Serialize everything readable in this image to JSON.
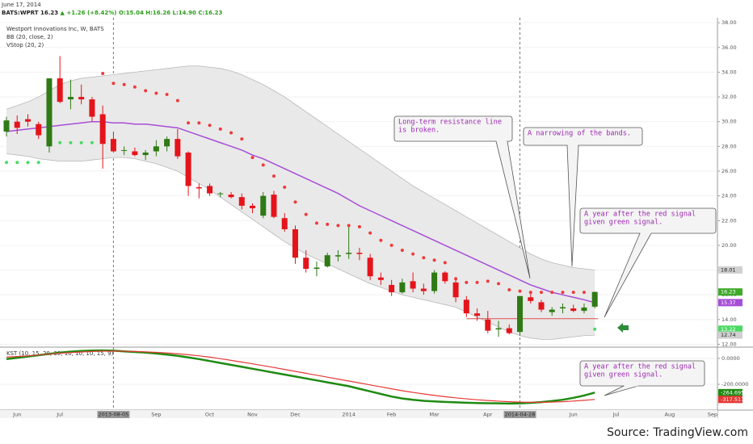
{
  "chart_data": {
    "type": "candlestick",
    "header": {
      "date": "June 17, 2014",
      "quote": "BATS:WPRT 16.23",
      "change": "▲ +1.26 (+8.42%)",
      "ohlc": "O:15.04 H:16.26 L:14.90 C:16.23"
    },
    "title": "Westport Innovations Inc, W, BATS",
    "source": "Source: TradingView.com",
    "categories": [
      null,
      "Jun",
      null,
      null,
      null,
      "Jul",
      null,
      null,
      null,
      null,
      "2013-08-05",
      null,
      null,
      null,
      "Sep",
      null,
      null,
      null,
      null,
      "Oct",
      null,
      null,
      null,
      "Nov",
      null,
      null,
      null,
      "Dec",
      null,
      null,
      null,
      null,
      "2014",
      null,
      null,
      null,
      "Feb",
      null,
      null,
      null,
      "Mar",
      null,
      null,
      null,
      null,
      "Apr",
      null,
      null,
      "2014-04-28",
      null,
      null,
      null,
      null,
      "Jun",
      null,
      null,
      null,
      "Jul",
      null,
      null,
      null,
      null,
      "Aug",
      null,
      null,
      null,
      "Sep"
    ],
    "highlighted_categories": [
      10,
      48
    ],
    "open": [
      29.2,
      30.0,
      30.2,
      29.8,
      28.0,
      33.5,
      31.8,
      32.0,
      31.8,
      30.6,
      28.6,
      27.7,
      27.6,
      27.3,
      27.6,
      28.0,
      28.6,
      27.5,
      24.7,
      24.8,
      24.2,
      24.1,
      23.9,
      23.2,
      22.4,
      24.1,
      22.2,
      21.3,
      19.0,
      18.1,
      18.3,
      19.1,
      19.3,
      19.4,
      19.0,
      17.4,
      16.8,
      16.2,
      17.1,
      16.5,
      16.3,
      17.8,
      17.0,
      15.6,
      14.5,
      14.0,
      13.2,
      13.3,
      13.0,
      15.8,
      15.4,
      14.6,
      14.9,
      14.9,
      14.7,
      15.04,
      null,
      null,
      null,
      null,
      null,
      null,
      null,
      null,
      null,
      null,
      null
    ],
    "high": [
      30.4,
      30.5,
      30.6,
      30.0,
      33.5,
      35.3,
      33.4,
      33.0,
      32.0,
      31.3,
      29.2,
      28.0,
      27.9,
      27.7,
      28.5,
      28.8,
      29.4,
      27.6,
      25.0,
      25.0,
      24.3,
      24.3,
      24.2,
      23.4,
      24.3,
      24.4,
      22.6,
      21.6,
      19.6,
      18.7,
      19.4,
      19.6,
      21.5,
      19.8,
      19.3,
      17.8,
      17.2,
      17.3,
      17.8,
      16.9,
      18.0,
      17.9,
      17.2,
      15.9,
      14.9,
      14.7,
      13.9,
      13.6,
      15.9,
      16.2,
      15.6,
      15.0,
      15.3,
      15.2,
      15.3,
      16.26,
      null,
      null,
      null,
      null,
      null,
      null,
      null,
      null,
      null,
      null,
      null
    ],
    "low": [
      28.8,
      29.0,
      29.6,
      28.6,
      27.5,
      31.5,
      31.0,
      31.4,
      30.0,
      26.2,
      27.5,
      27.3,
      27.2,
      26.9,
      27.2,
      27.6,
      27.0,
      24.0,
      23.8,
      24.0,
      23.9,
      23.8,
      22.9,
      22.6,
      22.2,
      22.2,
      21.1,
      18.5,
      17.8,
      17.5,
      18.2,
      18.7,
      18.9,
      18.8,
      17.2,
      16.8,
      15.9,
      16.1,
      16.2,
      16.0,
      16.1,
      16.9,
      15.4,
      14.2,
      13.9,
      12.9,
      12.6,
      12.8,
      12.7,
      15.3,
      14.6,
      14.3,
      14.5,
      14.6,
      14.5,
      14.9,
      null,
      null,
      null,
      null,
      null,
      null,
      null,
      null,
      null,
      null,
      null
    ],
    "close": [
      30.1,
      29.5,
      30.0,
      28.9,
      33.5,
      31.6,
      32.0,
      31.8,
      30.4,
      28.2,
      27.6,
      27.7,
      27.3,
      27.5,
      28.0,
      28.6,
      27.2,
      24.8,
      24.6,
      24.2,
      24.2,
      23.9,
      23.2,
      23.0,
      24.0,
      22.3,
      21.3,
      19.0,
      18.1,
      18.2,
      19.2,
      19.2,
      19.4,
      19.3,
      17.5,
      17.2,
      16.2,
      17.0,
      16.5,
      16.3,
      17.8,
      17.1,
      15.8,
      14.5,
      14.3,
      13.1,
      13.3,
      12.9,
      15.9,
      15.5,
      14.8,
      14.8,
      15.0,
      14.7,
      14.97,
      16.23,
      null,
      null,
      null,
      null,
      null,
      null,
      null,
      null,
      null,
      null,
      null
    ],
    "close_label": "16.23",
    "up_color": "#2f7a14",
    "down_color": "#e5141b",
    "tag_color": "#3faa2a",
    "ylim": [
      11.9,
      38.4
    ],
    "yticks": [
      {
        "value": 12,
        "label": "12.00"
      },
      {
        "value": 14,
        "label": "14.00"
      },
      {
        "value": 16,
        "label": "16.00"
      },
      {
        "value": 18,
        "label": "18.00"
      },
      {
        "value": 20,
        "label": "20.00"
      },
      {
        "value": 22,
        "label": "22.00"
      },
      {
        "value": 24,
        "label": "24.00"
      },
      {
        "value": 26,
        "label": "26.00"
      },
      {
        "value": 28,
        "label": "28.00"
      },
      {
        "value": 30,
        "label": "30.00"
      },
      {
        "value": 32,
        "label": "32.00"
      },
      {
        "value": 34,
        "label": "34.00"
      },
      {
        "value": 36,
        "label": "36.00"
      },
      {
        "value": 38,
        "label": "38.00"
      }
    ],
    "grid": true,
    "bb": {
      "name": "BB (20, close, 2)",
      "color": "#a64ed6",
      "band_color": "#b8b8b8",
      "fill": "#e9e9e9",
      "basis": [
        29.2,
        29.3,
        29.4,
        29.5,
        29.6,
        29.7,
        29.8,
        29.9,
        30.0,
        30.0,
        29.9,
        29.9,
        29.8,
        29.8,
        29.7,
        29.6,
        29.5,
        29.2,
        28.9,
        28.6,
        28.3,
        28.0,
        27.7,
        27.3,
        27.0,
        26.6,
        26.2,
        25.8,
        25.4,
        25.0,
        24.6,
        24.2,
        23.7,
        23.2,
        22.8,
        22.4,
        22.0,
        21.6,
        21.2,
        20.8,
        20.4,
        20.0,
        19.6,
        19.2,
        18.8,
        18.4,
        18.0,
        17.6,
        17.2,
        16.8,
        16.5,
        16.2,
        16.0,
        15.8,
        15.6,
        15.37,
        null,
        null,
        null,
        null,
        null,
        null,
        null,
        null,
        null,
        null,
        null
      ],
      "basis_label": "15.37",
      "upper": [
        31.0,
        31.3,
        31.6,
        32.0,
        32.5,
        33.0,
        33.3,
        33.5,
        33.6,
        33.7,
        33.8,
        33.9,
        34.0,
        34.1,
        34.2,
        34.3,
        34.4,
        34.5,
        34.5,
        34.4,
        34.3,
        34.1,
        33.8,
        33.4,
        33.0,
        32.5,
        32.0,
        31.4,
        30.8,
        30.2,
        29.6,
        29.0,
        28.4,
        27.8,
        27.2,
        26.6,
        26.0,
        25.4,
        24.8,
        24.3,
        23.8,
        23.3,
        22.8,
        22.3,
        21.8,
        21.3,
        20.8,
        20.3,
        19.8,
        19.3,
        18.9,
        18.6,
        18.4,
        18.2,
        18.1,
        18.01,
        null,
        null,
        null,
        null,
        null,
        null,
        null,
        null,
        null,
        null,
        null
      ],
      "upper_label": "18.01",
      "lower": [
        27.4,
        27.3,
        27.2,
        27.0,
        26.9,
        26.8,
        26.8,
        26.8,
        26.9,
        27.0,
        27.1,
        27.1,
        27.0,
        26.8,
        26.6,
        26.3,
        26.0,
        25.5,
        25.0,
        24.5,
        23.9,
        23.3,
        22.7,
        22.1,
        21.5,
        20.9,
        20.3,
        19.8,
        19.3,
        18.9,
        18.5,
        18.1,
        17.7,
        17.3,
        16.9,
        16.6,
        16.3,
        16.0,
        15.8,
        15.6,
        15.4,
        15.2,
        15.0,
        14.6,
        14.2,
        13.8,
        13.4,
        13.0,
        12.7,
        12.5,
        12.4,
        12.4,
        12.5,
        12.6,
        12.7,
        12.74,
        null,
        null,
        null,
        null,
        null,
        null,
        null,
        null,
        null,
        null,
        null
      ],
      "lower_label": "12.74"
    },
    "vstop": {
      "name": "VStop (20, 2)",
      "up_color": "#4cd964",
      "down_color": "#ef3b3b",
      "up": [
        26.7,
        26.7,
        26.7,
        26.7,
        null,
        28.3,
        28.3,
        28.3,
        28.3,
        null,
        null,
        null,
        null,
        null,
        null,
        null,
        null,
        null,
        null,
        null,
        null,
        null,
        null,
        null,
        null,
        null,
        null,
        null,
        null,
        null,
        null,
        null,
        null,
        null,
        null,
        null,
        null,
        null,
        null,
        null,
        null,
        null,
        null,
        null,
        null,
        null,
        null,
        null,
        null,
        null,
        null,
        null,
        null,
        null,
        null,
        13.22,
        null,
        null,
        null,
        null,
        null,
        null,
        null,
        null,
        null,
        null,
        null
      ],
      "up_label": "13.22",
      "down": [
        null,
        null,
        null,
        null,
        null,
        null,
        null,
        null,
        null,
        33.9,
        33.1,
        33.0,
        32.8,
        32.5,
        32.3,
        32.2,
        31.7,
        29.9,
        29.9,
        29.7,
        29.4,
        29.1,
        28.6,
        27.1,
        26.5,
        25.6,
        24.7,
        23.5,
        22.5,
        21.8,
        21.7,
        21.6,
        21.6,
        21.5,
        21.0,
        20.4,
        20.0,
        19.6,
        19.3,
        19.0,
        18.8,
        18.6,
        17.3,
        17.0,
        17.0,
        17.1,
        16.9,
        16.4,
        16.3,
        16.2,
        16.2,
        16.2,
        16.2,
        16.2,
        16.2,
        null,
        null,
        null,
        null,
        null,
        null,
        null,
        null,
        null,
        null,
        null,
        null
      ]
    },
    "support_level": 14.07,
    "annotations": [
      {
        "lines": [
          "Long-term resistance line",
          "is broken."
        ]
      },
      {
        "lines": [
          "A narrowing of the bands."
        ]
      },
      {
        "lines": [
          "A year after the red signal",
          "given green signal."
        ]
      },
      {
        "lines": [
          "A year after the red signal",
          "given green signal."
        ]
      }
    ],
    "kst": {
      "name": "KST (10, 15, 20, 30, 10, 10, 10, 15, 9)",
      "ylim": [
        -400,
        75
      ],
      "yticks": [
        {
          "value": 0,
          "label": "0.0000"
        },
        {
          "value": -200,
          "label": "-200.0000"
        }
      ],
      "series": [
        {
          "color": "#1f8a12",
          "last_label": "-264.6956",
          "values": [
            -5,
            5,
            15,
            25,
            35,
            45,
            52,
            58,
            61,
            62,
            60,
            55,
            50,
            45,
            38,
            30,
            20,
            8,
            -5,
            -20,
            -35,
            -50,
            -65,
            -80,
            -95,
            -110,
            -125,
            -140,
            -155,
            -170,
            -185,
            -200,
            -215,
            -235,
            -255,
            -275,
            -295,
            -310,
            -320,
            -328,
            -333,
            -337,
            -340,
            -343,
            -345,
            -347,
            -348,
            -349,
            -348,
            -344,
            -338,
            -330,
            -320,
            -305,
            -287,
            -264.6956,
            null,
            null,
            null,
            null,
            null,
            null,
            null,
            null,
            null,
            null,
            null
          ]
        },
        {
          "color": "#e53935",
          "last_label": "-317.5176",
          "values": [
            10,
            15,
            20,
            27,
            34,
            40,
            45,
            50,
            54,
            56,
            57,
            56,
            54,
            51,
            47,
            42,
            36,
            29,
            20,
            10,
            -2,
            -15,
            -28,
            -42,
            -56,
            -70,
            -85,
            -100,
            -115,
            -130,
            -145,
            -160,
            -175,
            -190,
            -205,
            -220,
            -235,
            -250,
            -263,
            -275,
            -286,
            -296,
            -305,
            -313,
            -320,
            -326,
            -331,
            -335,
            -338,
            -340,
            -340,
            -338,
            -335,
            -330,
            -324,
            -317.5176,
            null,
            null,
            null,
            null,
            null,
            null,
            null,
            null,
            null,
            null,
            null
          ]
        }
      ]
    }
  }
}
